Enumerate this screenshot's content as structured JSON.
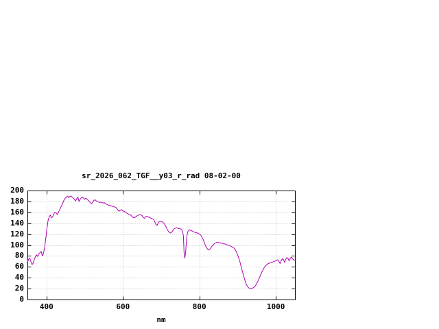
{
  "page": {
    "background": "#ffffff"
  },
  "chart_data": {
    "type": "line",
    "title": "sr_2026_062_TGF__y03_r_rad 08-02-00",
    "xlabel": "nm",
    "ylabel": "",
    "xlim": [
      350,
      1050
    ],
    "ylim": [
      0,
      200
    ],
    "xticks": [
      400,
      600,
      800,
      1000
    ],
    "yticks": [
      0,
      20,
      40,
      60,
      80,
      100,
      120,
      140,
      160,
      180,
      200
    ],
    "grid": true,
    "legend": "none",
    "line_color": "#b100b1",
    "grid_color": "#bdbdbd",
    "axis_color": "#000000",
    "series": [
      {
        "name": "sr_2026_062_TGF__y03_r_rad",
        "points": [
          [
            350,
            68
          ],
          [
            353,
            74
          ],
          [
            356,
            76
          ],
          [
            359,
            70
          ],
          [
            362,
            64
          ],
          [
            365,
            67
          ],
          [
            368,
            73
          ],
          [
            371,
            79
          ],
          [
            374,
            82
          ],
          [
            377,
            79
          ],
          [
            380,
            84
          ],
          [
            383,
            86
          ],
          [
            386,
            88
          ],
          [
            389,
            80
          ],
          [
            392,
            85
          ],
          [
            395,
            96
          ],
          [
            398,
            112
          ],
          [
            401,
            130
          ],
          [
            404,
            145
          ],
          [
            407,
            152
          ],
          [
            410,
            155
          ],
          [
            413,
            150
          ],
          [
            416,
            152
          ],
          [
            419,
            157
          ],
          [
            422,
            160
          ],
          [
            425,
            159
          ],
          [
            428,
            156
          ],
          [
            431,
            160
          ],
          [
            434,
            164
          ],
          [
            437,
            169
          ],
          [
            440,
            173
          ],
          [
            443,
            178
          ],
          [
            446,
            183
          ],
          [
            449,
            186
          ],
          [
            452,
            188
          ],
          [
            455,
            190
          ],
          [
            458,
            187
          ],
          [
            461,
            189
          ],
          [
            464,
            190
          ],
          [
            467,
            188
          ],
          [
            470,
            186
          ],
          [
            473,
            184
          ],
          [
            476,
            181
          ],
          [
            479,
            185
          ],
          [
            482,
            188
          ],
          [
            485,
            180
          ],
          [
            488,
            184
          ],
          [
            491,
            187
          ],
          [
            494,
            188
          ],
          [
            497,
            186
          ],
          [
            500,
            184
          ],
          [
            503,
            186
          ],
          [
            506,
            184
          ],
          [
            509,
            182
          ],
          [
            512,
            180
          ],
          [
            515,
            177
          ],
          [
            518,
            176
          ],
          [
            521,
            179
          ],
          [
            524,
            182
          ],
          [
            527,
            183
          ],
          [
            530,
            181
          ],
          [
            533,
            180
          ],
          [
            536,
            179
          ],
          [
            539,
            178
          ],
          [
            542,
            179
          ],
          [
            545,
            178
          ],
          [
            548,
            177
          ],
          [
            551,
            178
          ],
          [
            554,
            176
          ],
          [
            557,
            175
          ],
          [
            560,
            174
          ],
          [
            563,
            173
          ],
          [
            566,
            172
          ],
          [
            569,
            172
          ],
          [
            572,
            171
          ],
          [
            575,
            171
          ],
          [
            578,
            170
          ],
          [
            581,
            169
          ],
          [
            584,
            167
          ],
          [
            587,
            164
          ],
          [
            590,
            162
          ],
          [
            593,
            164
          ],
          [
            596,
            165
          ],
          [
            599,
            163
          ],
          [
            602,
            162
          ],
          [
            605,
            161
          ],
          [
            608,
            160
          ],
          [
            611,
            158
          ],
          [
            614,
            157
          ],
          [
            617,
            156
          ],
          [
            620,
            155
          ],
          [
            623,
            153
          ],
          [
            626,
            151
          ],
          [
            629,
            150
          ],
          [
            632,
            151
          ],
          [
            635,
            153
          ],
          [
            638,
            154
          ],
          [
            641,
            155
          ],
          [
            644,
            156
          ],
          [
            647,
            155
          ],
          [
            650,
            154
          ],
          [
            653,
            151
          ],
          [
            656,
            149
          ],
          [
            659,
            152
          ],
          [
            662,
            153
          ],
          [
            665,
            152
          ],
          [
            668,
            151
          ],
          [
            671,
            150
          ],
          [
            674,
            149
          ],
          [
            677,
            148
          ],
          [
            680,
            147
          ],
          [
            683,
            143
          ],
          [
            686,
            138
          ],
          [
            689,
            136
          ],
          [
            692,
            140
          ],
          [
            695,
            143
          ],
          [
            698,
            144
          ],
          [
            701,
            143
          ],
          [
            704,
            142
          ],
          [
            707,
            140
          ],
          [
            710,
            137
          ],
          [
            713,
            133
          ],
          [
            716,
            128
          ],
          [
            719,
            125
          ],
          [
            722,
            123
          ],
          [
            725,
            122
          ],
          [
            728,
            124
          ],
          [
            731,
            127
          ],
          [
            734,
            130
          ],
          [
            737,
            131
          ],
          [
            740,
            132
          ],
          [
            743,
            131
          ],
          [
            746,
            130
          ],
          [
            749,
            130
          ],
          [
            752,
            129
          ],
          [
            755,
            127
          ],
          [
            758,
            118
          ],
          [
            760,
            85
          ],
          [
            762,
            76
          ],
          [
            764,
            88
          ],
          [
            766,
            108
          ],
          [
            768,
            120
          ],
          [
            770,
            125
          ],
          [
            772,
            127
          ],
          [
            774,
            128
          ],
          [
            776,
            127
          ],
          [
            778,
            127
          ],
          [
            780,
            126
          ],
          [
            783,
            125
          ],
          [
            786,
            124
          ],
          [
            789,
            123
          ],
          [
            792,
            123
          ],
          [
            795,
            122
          ],
          [
            798,
            121
          ],
          [
            801,
            120
          ],
          [
            804,
            118
          ],
          [
            807,
            114
          ],
          [
            810,
            110
          ],
          [
            813,
            104
          ],
          [
            816,
            99
          ],
          [
            819,
            95
          ],
          [
            822,
            92
          ],
          [
            825,
            91
          ],
          [
            828,
            93
          ],
          [
            831,
            96
          ],
          [
            834,
            99
          ],
          [
            837,
            101
          ],
          [
            840,
            103
          ],
          [
            843,
            104
          ],
          [
            846,
            105
          ],
          [
            849,
            105
          ],
          [
            852,
            104
          ],
          [
            855,
            104
          ],
          [
            858,
            103
          ],
          [
            861,
            103
          ],
          [
            864,
            102
          ],
          [
            867,
            102
          ],
          [
            870,
            101
          ],
          [
            873,
            100
          ],
          [
            876,
            100
          ],
          [
            879,
            99
          ],
          [
            882,
            98
          ],
          [
            885,
            97
          ],
          [
            888,
            96
          ],
          [
            891,
            94
          ],
          [
            894,
            91
          ],
          [
            897,
            87
          ],
          [
            900,
            82
          ],
          [
            903,
            76
          ],
          [
            906,
            69
          ],
          [
            909,
            61
          ],
          [
            912,
            53
          ],
          [
            915,
            45
          ],
          [
            918,
            38
          ],
          [
            921,
            31
          ],
          [
            924,
            26
          ],
          [
            927,
            23
          ],
          [
            930,
            21
          ],
          [
            933,
            20
          ],
          [
            936,
            20
          ],
          [
            939,
            21
          ],
          [
            942,
            22
          ],
          [
            945,
            24
          ],
          [
            948,
            27
          ],
          [
            951,
            31
          ],
          [
            954,
            35
          ],
          [
            957,
            40
          ],
          [
            960,
            45
          ],
          [
            963,
            50
          ],
          [
            966,
            54
          ],
          [
            969,
            58
          ],
          [
            972,
            61
          ],
          [
            975,
            63
          ],
          [
            978,
            65
          ],
          [
            981,
            66
          ],
          [
            984,
            67
          ],
          [
            987,
            68
          ],
          [
            990,
            68
          ],
          [
            993,
            69
          ],
          [
            996,
            70
          ],
          [
            999,
            71
          ],
          [
            1002,
            72
          ],
          [
            1005,
            73
          ],
          [
            1008,
            70
          ],
          [
            1011,
            66
          ],
          [
            1014,
            71
          ],
          [
            1017,
            75
          ],
          [
            1020,
            73
          ],
          [
            1023,
            68
          ],
          [
            1026,
            74
          ],
          [
            1029,
            77
          ],
          [
            1032,
            75
          ],
          [
            1035,
            71
          ],
          [
            1038,
            76
          ],
          [
            1041,
            78
          ],
          [
            1044,
            74
          ],
          [
            1047,
            73
          ],
          [
            1050,
            72
          ]
        ]
      }
    ]
  }
}
